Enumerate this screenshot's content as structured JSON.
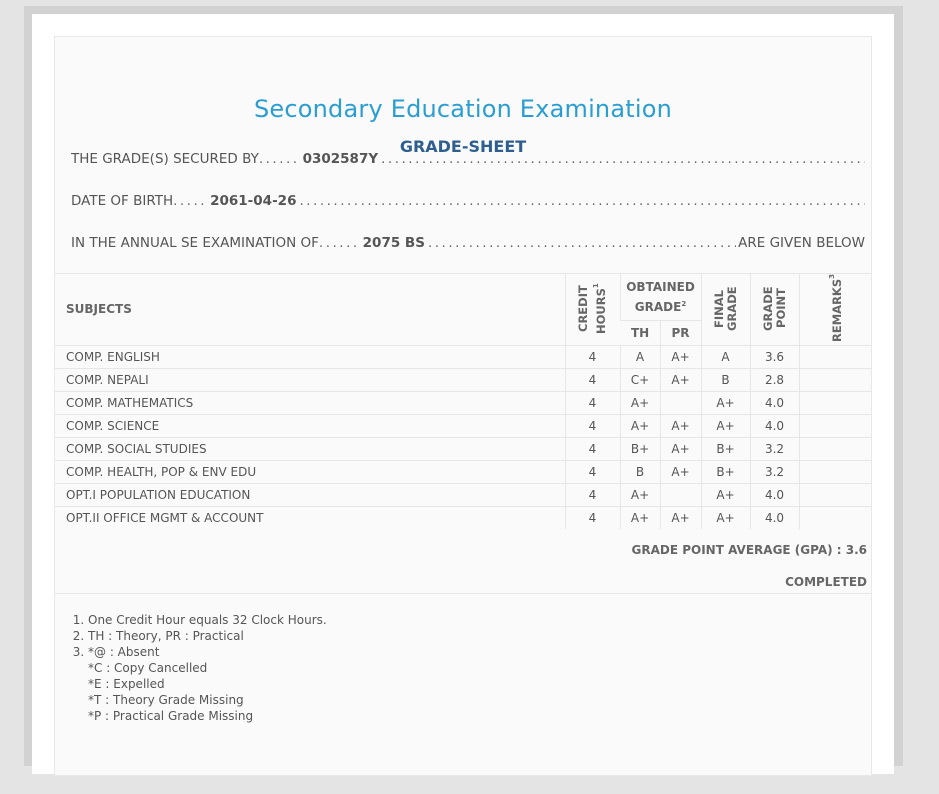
{
  "document": {
    "title": "Secondary Education Examination",
    "subtitle": "GRADE-SHEET"
  },
  "student": {
    "secured_label": "THE GRADE(S) SECURED BY",
    "symbol_no": "0302587Y",
    "dob_label": "DATE OF BIRTH",
    "dob": "2061-04-26",
    "exam_label": "IN THE ANNUAL SE EXAMINATION OF",
    "exam_year": "2075 BS",
    "exam_suffix": "ARE GIVEN BELOW"
  },
  "table": {
    "headers": {
      "subjects": "SUBJECTS",
      "credit_hours": "CREDIT HOURS",
      "credit_sup": "1",
      "obtained_grade": "OBTAINED GRADE",
      "obtained_sup": "2",
      "th": "TH",
      "pr": "PR",
      "final_grade": "FINAL GRADE",
      "grade_point": "GRADE POINT",
      "remarks": "REMARKS",
      "remarks_sup": "3"
    },
    "rows": [
      {
        "subject": "COMP. ENGLISH",
        "credit": "4",
        "th": "A",
        "pr": "A+",
        "final": "A",
        "gp": "3.6",
        "remarks": ""
      },
      {
        "subject": "COMP. NEPALI",
        "credit": "4",
        "th": "C+",
        "pr": "A+",
        "final": "B",
        "gp": "2.8",
        "remarks": ""
      },
      {
        "subject": "COMP. MATHEMATICS",
        "credit": "4",
        "th": "A+",
        "pr": "",
        "final": "A+",
        "gp": "4.0",
        "remarks": ""
      },
      {
        "subject": "COMP. SCIENCE",
        "credit": "4",
        "th": "A+",
        "pr": "A+",
        "final": "A+",
        "gp": "4.0",
        "remarks": ""
      },
      {
        "subject": "COMP. SOCIAL STUDIES",
        "credit": "4",
        "th": "B+",
        "pr": "A+",
        "final": "B+",
        "gp": "3.2",
        "remarks": ""
      },
      {
        "subject": "COMP. HEALTH, POP & ENV EDU",
        "credit": "4",
        "th": "B",
        "pr": "A+",
        "final": "B+",
        "gp": "3.2",
        "remarks": ""
      },
      {
        "subject": "OPT.I POPULATION EDUCATION",
        "credit": "4",
        "th": "A+",
        "pr": "",
        "final": "A+",
        "gp": "4.0",
        "remarks": ""
      },
      {
        "subject": "OPT.II OFFICE MGMT & ACCOUNT",
        "credit": "4",
        "th": "A+",
        "pr": "A+",
        "final": "A+",
        "gp": "4.0",
        "remarks": ""
      }
    ]
  },
  "summary": {
    "gpa_text": "GRADE POINT AVERAGE (GPA) : 3.6",
    "status": "COMPLETED"
  },
  "notes": {
    "n1": "One Credit Hour equals 32 Clock Hours.",
    "n2": "TH : Theory, PR : Practical",
    "n3": "*@ : Absent",
    "codes": [
      "*C : Copy Cancelled",
      "*E : Expelled",
      "*T : Theory Grade Missing",
      "*P : Practical Grade Missing"
    ]
  }
}
